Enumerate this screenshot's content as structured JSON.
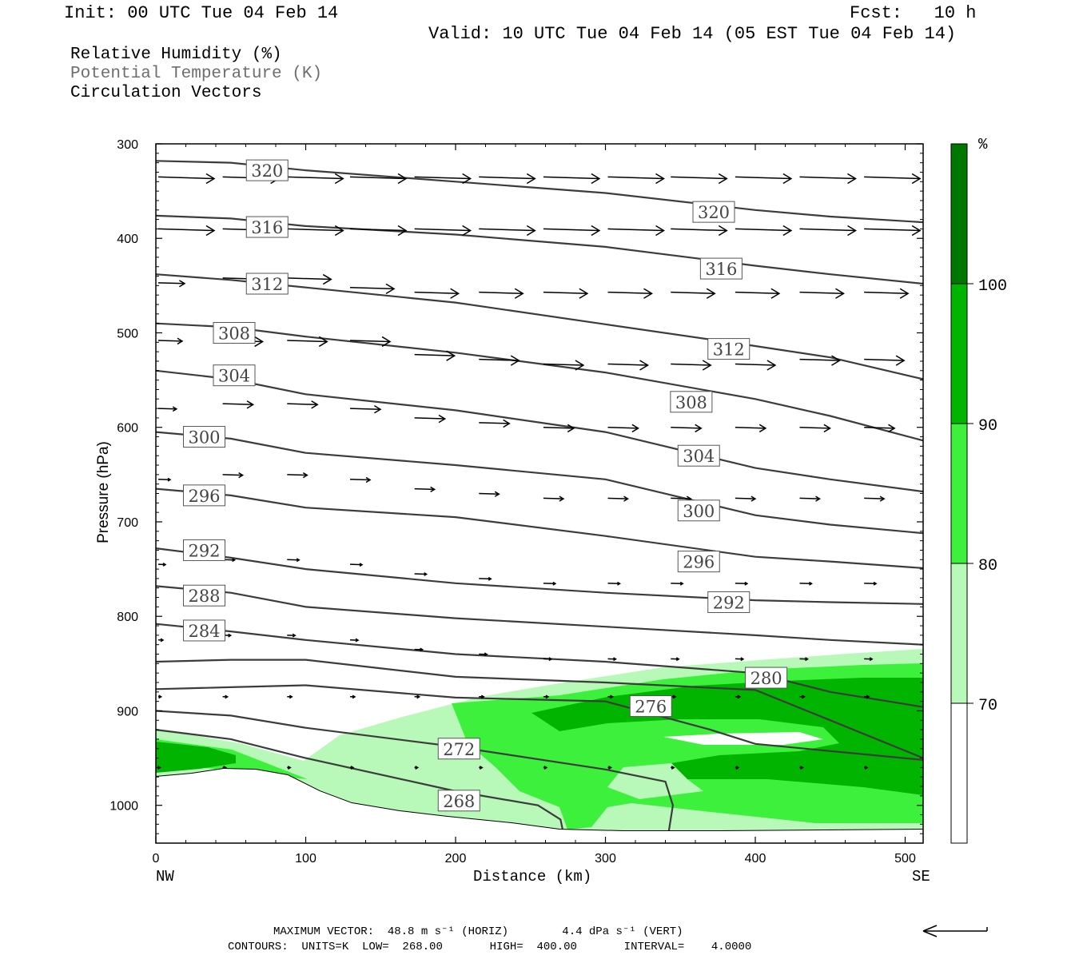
{
  "header": {
    "init": "Init: 00 UTC Tue 04 Feb 14",
    "fcst": "Fcst:   10 h",
    "valid": "Valid: 10 UTC Tue 04 Feb 14 (05 EST Tue 04 Feb 14)"
  },
  "legend": {
    "rh": "Relative Humidity (%)",
    "theta": "Potential Temperature (K)",
    "vectors": "Circulation Vectors"
  },
  "footer": {
    "max_vector": "MAXIMUM VECTOR:  48.8 m s⁻¹ (HORIZ)        4.4 dPa s⁻¹ (VERT)",
    "contours": "CONTOURS:  UNITS=K  LOW=  268.00       HIGH=  400.00       INTERVAL=    4.0000"
  },
  "colors": {
    "rh70": "#b8f8b8",
    "rh80": "#3cf03c",
    "rh90": "#00b400",
    "rh100": "#007800",
    "contour": "#3c3c3c"
  },
  "chart_data": {
    "type": "cross-section",
    "xlabel": "Distance (km)",
    "ylabel": "Pressure (hPa)",
    "xlim": [
      0,
      512
    ],
    "ylim": [
      1040,
      300
    ],
    "x_ticks": [
      0,
      100,
      200,
      300,
      400,
      500
    ],
    "y_ticks": [
      300,
      400,
      500,
      600,
      700,
      800,
      900,
      1000
    ],
    "x_end_labels": {
      "left": "NW",
      "right": "SE"
    },
    "colorbar": {
      "unit": "%",
      "levels": [
        70,
        80,
        90,
        100
      ]
    },
    "theta_contours": [
      {
        "label": "320",
        "points": [
          [
            0,
            318
          ],
          [
            50,
            320
          ],
          [
            100,
            328
          ],
          [
            200,
            340
          ],
          [
            300,
            352
          ],
          [
            400,
            370
          ],
          [
            450,
            377
          ],
          [
            512,
            383
          ]
        ]
      },
      {
        "label": "316",
        "points": [
          [
            0,
            376
          ],
          [
            50,
            379
          ],
          [
            100,
            387
          ],
          [
            200,
            396
          ],
          [
            300,
            409
          ],
          [
            400,
            429
          ],
          [
            450,
            438
          ],
          [
            512,
            448
          ]
        ]
      },
      {
        "label": "312",
        "points": [
          [
            0,
            438
          ],
          [
            50,
            444
          ],
          [
            100,
            452
          ],
          [
            200,
            468
          ],
          [
            300,
            491
          ],
          [
            400,
            514
          ],
          [
            450,
            526
          ],
          [
            512,
            549
          ]
        ]
      },
      {
        "label": "308",
        "points": [
          [
            0,
            490
          ],
          [
            50,
            494
          ],
          [
            100,
            504
          ],
          [
            200,
            521
          ],
          [
            300,
            542
          ],
          [
            400,
            570
          ],
          [
            450,
            588
          ],
          [
            512,
            614
          ]
        ]
      },
      {
        "label": "304",
        "points": [
          [
            0,
            540
          ],
          [
            50,
            549
          ],
          [
            100,
            565
          ],
          [
            200,
            582
          ],
          [
            300,
            605
          ],
          [
            400,
            643
          ],
          [
            450,
            655
          ],
          [
            512,
            668
          ]
        ]
      },
      {
        "label": "300",
        "points": [
          [
            0,
            605
          ],
          [
            50,
            612
          ],
          [
            100,
            627
          ],
          [
            200,
            640
          ],
          [
            300,
            655
          ],
          [
            400,
            693
          ],
          [
            450,
            703
          ],
          [
            512,
            712
          ]
        ]
      },
      {
        "label": "296",
        "points": [
          [
            0,
            665
          ],
          [
            50,
            672
          ],
          [
            100,
            685
          ],
          [
            200,
            695
          ],
          [
            300,
            715
          ],
          [
            400,
            737
          ],
          [
            450,
            742
          ],
          [
            512,
            749
          ]
        ]
      },
      {
        "label": "292",
        "points": [
          [
            0,
            728
          ],
          [
            50,
            738
          ],
          [
            100,
            750
          ],
          [
            200,
            765
          ],
          [
            300,
            775
          ],
          [
            400,
            783
          ],
          [
            450,
            785
          ],
          [
            512,
            787
          ]
        ]
      },
      {
        "label": "288",
        "points": [
          [
            0,
            768
          ],
          [
            50,
            775
          ],
          [
            100,
            790
          ],
          [
            200,
            802
          ],
          [
            300,
            811
          ],
          [
            400,
            820
          ],
          [
            450,
            825
          ],
          [
            512,
            830
          ]
        ]
      },
      {
        "label": "284",
        "points": [
          [
            0,
            808
          ],
          [
            50,
            816
          ],
          [
            100,
            825
          ],
          [
            200,
            840
          ],
          [
            300,
            848
          ],
          [
            400,
            860
          ],
          [
            450,
            880
          ],
          [
            512,
            896
          ]
        ]
      },
      {
        "label": "280",
        "points": [
          [
            0,
            848
          ],
          [
            50,
            846
          ],
          [
            100,
            846
          ],
          [
            200,
            864
          ],
          [
            300,
            870
          ],
          [
            400,
            878
          ],
          [
            450,
            910
          ],
          [
            512,
            950
          ]
        ]
      },
      {
        "label": "276",
        "points": [
          [
            0,
            877
          ],
          [
            50,
            875
          ],
          [
            100,
            873
          ],
          [
            200,
            886
          ],
          [
            300,
            890
          ],
          [
            370,
            920
          ],
          [
            400,
            935
          ],
          [
            512,
            952
          ]
        ]
      },
      {
        "label": "272",
        "points": [
          [
            0,
            900
          ],
          [
            50,
            905
          ],
          [
            100,
            918
          ],
          [
            200,
            938
          ],
          [
            300,
            962
          ],
          [
            340,
            975
          ],
          [
            345,
            1000
          ],
          [
            342,
            1030
          ]
        ]
      },
      {
        "label": "268",
        "points": [
          [
            0,
            920
          ],
          [
            50,
            930
          ],
          [
            100,
            950
          ],
          [
            200,
            985
          ],
          [
            255,
            1000
          ],
          [
            270,
            1015
          ],
          [
            272,
            1030
          ]
        ]
      }
    ],
    "max_vector_horiz_m_s": 48.8,
    "max_vector_vert_dPa_s": 4.4,
    "contour_low": 268.0,
    "contour_high": 400.0,
    "contour_interval": 4.0
  }
}
